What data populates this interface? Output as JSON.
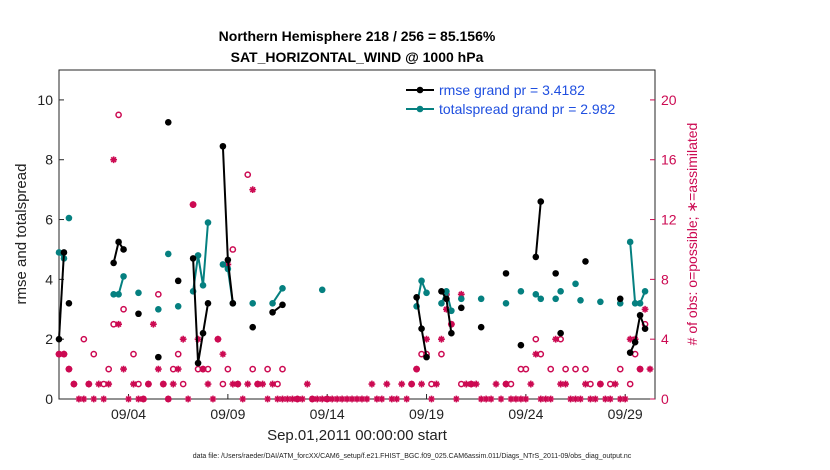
{
  "chart_data": {
    "type": "line",
    "title": "Northern Hemisphere 218 / 256 = 85.156%",
    "subtitle": "SAT_HORIZONTAL_WIND @ 1000 hPa",
    "xlabel": "Sep.01,2011 00:00:00 start",
    "ylabel": "rmse and totalspread",
    "ylabel_right": "# of obs: o=possible; ∗=assimilated",
    "xlim": [
      0.5,
      30.5
    ],
    "ylim": [
      0,
      11
    ],
    "ylim_right": [
      0,
      22
    ],
    "xtick_values": [
      4,
      9,
      14,
      19,
      24,
      29
    ],
    "xtick_labels": [
      "09/04",
      "09/09",
      "09/14",
      "09/19",
      "09/24",
      "09/29"
    ],
    "ytick_values": [
      0,
      2,
      4,
      6,
      8,
      10
    ],
    "ytick_labels": [
      "0",
      "2",
      "4",
      "6",
      "8",
      "10"
    ],
    "ytick_right_values": [
      0,
      4,
      8,
      12,
      16,
      20
    ],
    "ytick_right_labels": [
      "0",
      "4",
      "8",
      "12",
      "16",
      "20"
    ],
    "grid": false,
    "legend_position": "top-right",
    "series": [
      {
        "name": "rmse grand pr = 3.4182",
        "axis": "left",
        "color": "#000000",
        "marker": "dot",
        "points": [
          [
            [
              0.5,
              2.0
            ],
            [
              0.75,
              4.9
            ]
          ],
          [
            [
              1.0,
              3.2
            ]
          ],
          [
            [
              3.25,
              4.55
            ],
            [
              3.5,
              5.25
            ],
            [
              3.75,
              5.0
            ]
          ],
          [
            [
              4.5,
              2.85
            ]
          ],
          [
            [
              5.5,
              1.4
            ]
          ],
          [
            [
              6.0,
              9.25
            ]
          ],
          [
            [
              6.5,
              3.95
            ]
          ],
          [
            [
              7.25,
              4.7
            ],
            [
              7.5,
              1.2
            ],
            [
              7.75,
              2.2
            ],
            [
              8.0,
              3.2
            ]
          ],
          [
            [
              8.75,
              8.45
            ],
            [
              9.0,
              4.65
            ],
            [
              9.25,
              3.2
            ]
          ],
          [
            [
              10.25,
              2.4
            ]
          ],
          [
            [
              11.25,
              2.9
            ],
            [
              11.75,
              3.15
            ]
          ],
          [
            [
              18.5,
              3.4
            ],
            [
              18.75,
              2.35
            ],
            [
              19.0,
              1.4
            ]
          ],
          [
            [
              19.75,
              3.6
            ],
            [
              20.0,
              3.35
            ],
            [
              20.25,
              2.2
            ]
          ],
          [
            [
              20.75,
              3.05
            ]
          ],
          [
            [
              21.75,
              2.4
            ]
          ],
          [
            [
              23.0,
              4.2
            ]
          ],
          [
            [
              23.75,
              1.8
            ]
          ],
          [
            [
              24.5,
              4.75
            ],
            [
              24.75,
              6.6
            ]
          ],
          [
            [
              25.5,
              4.2
            ]
          ],
          [
            [
              25.75,
              2.2
            ]
          ],
          [
            [
              27.0,
              4.6
            ]
          ],
          [
            [
              28.75,
              3.35
            ]
          ],
          [
            [
              29.25,
              1.55
            ],
            [
              29.5,
              1.9
            ],
            [
              29.75,
              2.8
            ],
            [
              30.0,
              2.35
            ]
          ]
        ]
      },
      {
        "name": "totalspread grand pr = 2.982",
        "axis": "left",
        "color": "#058080",
        "marker": "dot",
        "points": [
          [
            [
              0.5,
              4.9
            ],
            [
              0.75,
              4.7
            ]
          ],
          [
            [
              1.0,
              6.05
            ]
          ],
          [
            [
              3.25,
              3.5
            ],
            [
              3.5,
              3.5
            ],
            [
              3.75,
              4.1
            ]
          ],
          [
            [
              4.5,
              3.55
            ]
          ],
          [
            [
              5.5,
              3.0
            ]
          ],
          [
            [
              6.0,
              4.85
            ]
          ],
          [
            [
              6.5,
              3.1
            ]
          ],
          [
            [
              7.25,
              3.6
            ],
            [
              7.5,
              4.8
            ],
            [
              7.75,
              3.8
            ],
            [
              8.0,
              5.9
            ]
          ],
          [
            [
              8.75,
              4.5
            ],
            [
              9.0,
              4.35
            ],
            [
              9.25,
              3.2
            ]
          ],
          [
            [
              10.25,
              3.2
            ]
          ],
          [
            [
              11.25,
              3.2
            ],
            [
              11.75,
              3.7
            ]
          ],
          [
            [
              13.75,
              3.65
            ]
          ],
          [
            [
              18.5,
              3.1
            ],
            [
              18.75,
              3.95
            ],
            [
              19.0,
              3.55
            ]
          ],
          [
            [
              19.75,
              3.2
            ],
            [
              20.0,
              3.6
            ],
            [
              20.25,
              2.95
            ]
          ],
          [
            [
              20.75,
              3.35
            ]
          ],
          [
            [
              21.75,
              3.35
            ]
          ],
          [
            [
              23.0,
              3.2
            ]
          ],
          [
            [
              23.75,
              3.6
            ]
          ],
          [
            [
              24.5,
              3.5
            ],
            [
              24.75,
              3.35
            ]
          ],
          [
            [
              25.5,
              3.35
            ]
          ],
          [
            [
              25.75,
              3.6
            ]
          ],
          [
            [
              26.5,
              3.85
            ]
          ],
          [
            [
              26.75,
              3.3
            ]
          ],
          [
            [
              27.75,
              3.25
            ]
          ],
          [
            [
              28.75,
              3.2
            ]
          ],
          [
            [
              29.25,
              5.25
            ],
            [
              29.5,
              3.2
            ],
            [
              29.75,
              3.2
            ],
            [
              30.0,
              3.6
            ]
          ]
        ]
      }
    ],
    "obs_possible": {
      "axis": "right",
      "color": "#cc0a52",
      "marker": "o",
      "x": [
        0.5,
        0.75,
        1.0,
        1.25,
        1.75,
        2.0,
        2.25,
        2.75,
        3.0,
        3.25,
        3.5,
        3.75,
        4.25,
        4.5,
        4.75,
        5.0,
        5.5,
        5.75,
        6.0,
        6.25,
        6.5,
        6.75,
        7.25,
        7.5,
        7.75,
        8.0,
        8.5,
        8.75,
        9.0,
        9.25,
        9.5,
        10.0,
        10.25,
        10.5,
        11.0,
        11.5,
        11.75,
        12.5,
        13.25,
        14.0,
        18.25,
        18.5,
        18.75,
        19.0,
        19.25,
        19.75,
        20.0,
        20.25,
        20.75,
        21.25,
        23.0,
        23.25,
        23.75,
        24.0,
        24.5,
        24.75,
        25.25,
        25.75,
        26.0,
        26.5,
        27.0,
        27.25,
        27.75,
        28.25,
        28.75,
        29.25,
        29.5,
        29.75,
        30.0
      ],
      "values": [
        3,
        3,
        2,
        1,
        4,
        1,
        3,
        1,
        2,
        5,
        19,
        6,
        3,
        1,
        0,
        1,
        7,
        1,
        0,
        2,
        3,
        1,
        13,
        2,
        2,
        2,
        4,
        1,
        2,
        10,
        1,
        15,
        2,
        1,
        2,
        1,
        2,
        0,
        0,
        0,
        1,
        2,
        3,
        3,
        1,
        3,
        7,
        5,
        1,
        1,
        1,
        1,
        2,
        2,
        4,
        3,
        2,
        4,
        2,
        2,
        2,
        1,
        1,
        1,
        2,
        1,
        3,
        2,
        5
      ]
    },
    "obs_assimilated": {
      "axis": "right",
      "color": "#cc0a52",
      "marker": "*",
      "x": [
        0.5,
        0.75,
        1.0,
        1.25,
        1.5,
        1.75,
        2.0,
        2.25,
        2.5,
        2.75,
        3.0,
        3.25,
        3.5,
        3.75,
        4.0,
        4.25,
        4.5,
        4.75,
        5.0,
        5.25,
        5.5,
        5.75,
        6.0,
        6.25,
        6.5,
        6.75,
        7.0,
        7.25,
        7.5,
        7.75,
        8.0,
        8.25,
        8.5,
        8.75,
        9.0,
        9.25,
        9.5,
        9.75,
        10.0,
        10.25,
        10.5,
        10.75,
        11.0,
        11.25,
        11.5,
        11.75,
        12.0,
        12.25,
        12.5,
        12.75,
        13.0,
        13.25,
        13.5,
        13.75,
        14.0,
        14.25,
        14.5,
        14.75,
        15.0,
        15.25,
        15.5,
        15.75,
        16.0,
        16.25,
        16.5,
        16.75,
        17.0,
        17.25,
        17.5,
        17.75,
        18.0,
        18.25,
        18.5,
        18.75,
        19.0,
        19.25,
        19.5,
        19.75,
        20.0,
        20.25,
        20.5,
        20.75,
        21.0,
        21.25,
        21.5,
        21.75,
        22.0,
        22.25,
        22.5,
        22.75,
        23.0,
        23.25,
        23.5,
        23.75,
        24.0,
        24.25,
        24.5,
        24.75,
        25.0,
        25.25,
        25.5,
        25.75,
        26.0,
        26.25,
        26.5,
        26.75,
        27.0,
        27.25,
        27.5,
        27.75,
        28.0,
        28.25,
        28.5,
        28.75,
        29.0,
        29.25,
        29.5,
        29.75,
        30.0,
        30.25
      ],
      "values": [
        3,
        3,
        2,
        1,
        0,
        0,
        1,
        0,
        1,
        0,
        1,
        16,
        5,
        2,
        0,
        1,
        0,
        0,
        1,
        5,
        2,
        1,
        0,
        1,
        2,
        4,
        0,
        13,
        4,
        2,
        1,
        0,
        4,
        3,
        9,
        1,
        1,
        0,
        1,
        14,
        1,
        1,
        0,
        1,
        0,
        0,
        0,
        0,
        0,
        0,
        1,
        0,
        0,
        0,
        0,
        0,
        0,
        0,
        0,
        0,
        0,
        0,
        0,
        1,
        0,
        0,
        1,
        0,
        0,
        1,
        0,
        1,
        2,
        1,
        4,
        0,
        1,
        4,
        6,
        5,
        0,
        7,
        1,
        1,
        1,
        0,
        0,
        0,
        1,
        0,
        1,
        0,
        0,
        0,
        0,
        1,
        3,
        0,
        0,
        0,
        4,
        1,
        1,
        0,
        0,
        0,
        1,
        0,
        0,
        1,
        0,
        0,
        1,
        0,
        0,
        4,
        4,
        2,
        6,
        2
      ]
    }
  },
  "footer": "data file: /Users/raeder/DAI/ATM_forcXX/CAM6_setup/f.e21.FHIST_BGC.f09_025.CAM6assim.011/Diags_NTrS_2011-09/obs_diag_output.nc"
}
